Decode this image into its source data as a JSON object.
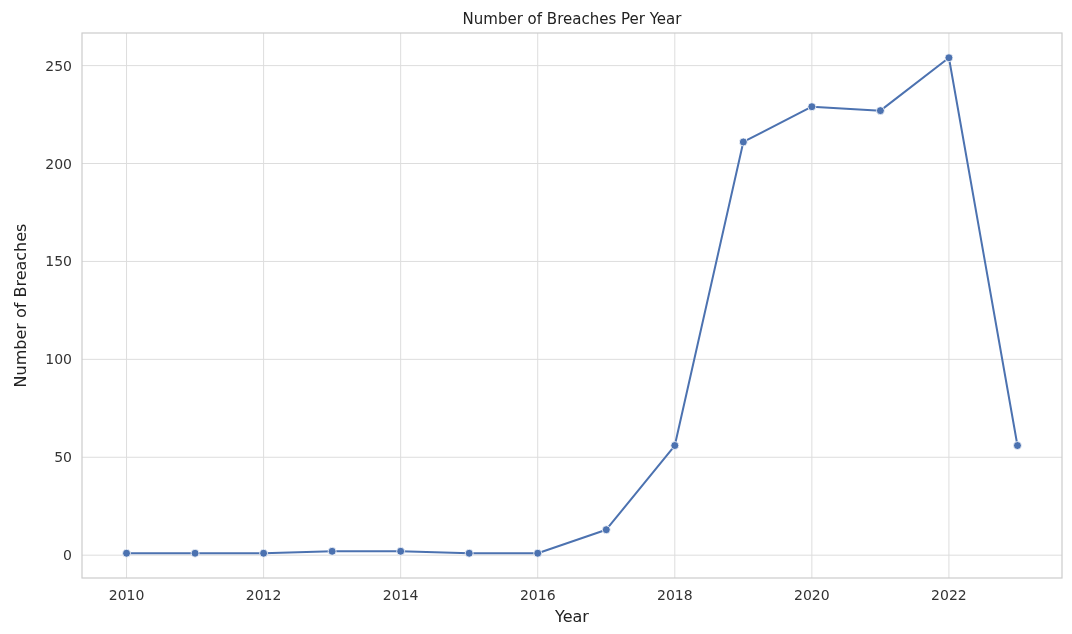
{
  "chart_data": {
    "type": "line",
    "title": "Number of Breaches Per Year",
    "xlabel": "Year",
    "ylabel": "Number of Breaches",
    "x": [
      2010,
      2011,
      2012,
      2013,
      2014,
      2015,
      2016,
      2017,
      2018,
      2019,
      2020,
      2021,
      2022,
      2023
    ],
    "series": [
      {
        "color": "#4c72b0",
        "values": [
          1,
          1,
          1,
          2,
          2,
          1,
          1,
          13,
          56,
          211,
          229,
          227,
          254,
          56
        ]
      }
    ],
    "xlim": [
      2009.35,
      2023.65
    ],
    "xticks": [
      2010,
      2012,
      2014,
      2016,
      2018,
      2020,
      2022
    ],
    "ylim": [
      -11.65,
      266.65
    ],
    "yticks": [
      0,
      50,
      100,
      150,
      200,
      250
    ],
    "grid": true,
    "marker": "circle",
    "line_style": "solid"
  }
}
